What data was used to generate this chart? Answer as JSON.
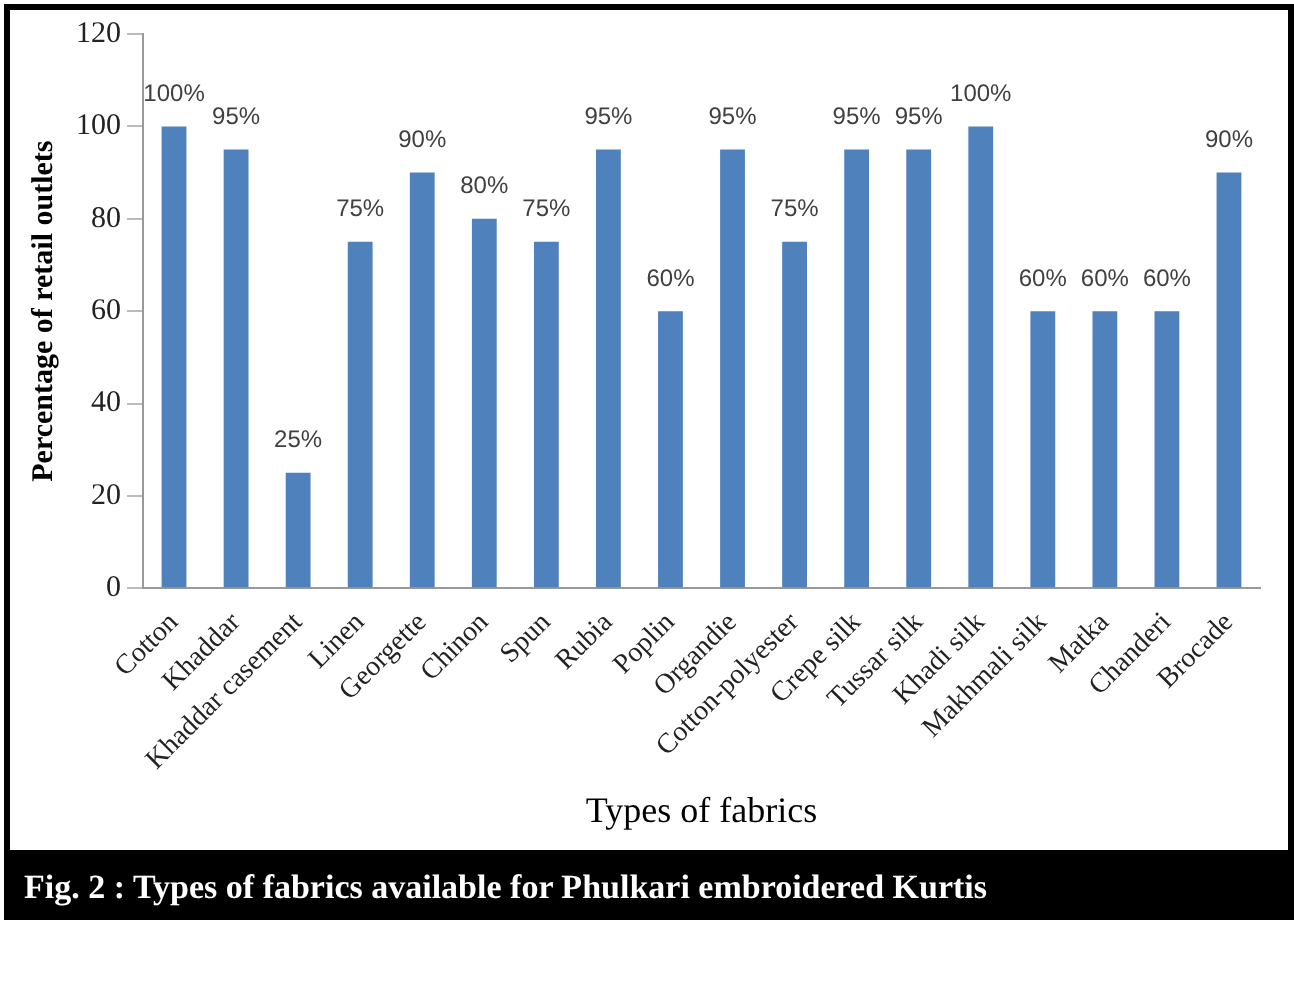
{
  "chart_data": {
    "type": "bar",
    "title": "Fig. 2 :  Types of fabrics available for Phulkari embroidered Kurtis",
    "xlabel": "Types of fabrics",
    "ylabel": "Percentage of retail outlets",
    "categories": [
      "Cotton",
      "Khaddar",
      "Khaddar casement",
      "Linen",
      "Georgette",
      "Chinon",
      "Spun",
      "Rubia",
      "Poplin",
      "Organdie",
      "Cotton-polyester",
      "Crepe silk",
      "Tussar silk",
      "Khadi silk",
      "Makhmali silk",
      "Matka",
      "Chanderi",
      "Brocade"
    ],
    "values": [
      100,
      95,
      25,
      75,
      90,
      80,
      75,
      95,
      60,
      95,
      75,
      95,
      95,
      100,
      60,
      60,
      60,
      90
    ],
    "value_labels": [
      "100%",
      "95%",
      "25%",
      "75%",
      "90%",
      "80%",
      "75%",
      "95%",
      "60%",
      "95%",
      "75%",
      "95%",
      "95%",
      "100%",
      "60%",
      "60%",
      "60%",
      "90%"
    ],
    "color": "#4f81bd",
    "ylim": [
      0,
      120
    ],
    "yticks": [
      0,
      20,
      40,
      60,
      80,
      100,
      120
    ],
    "grid": false,
    "legend": false
  }
}
